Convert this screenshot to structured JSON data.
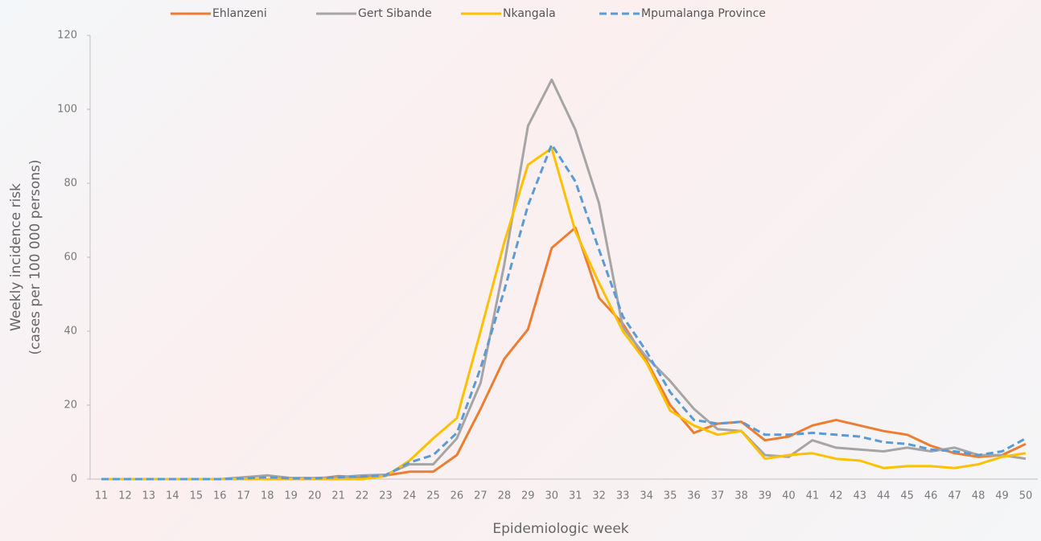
{
  "chart_data": {
    "type": "line",
    "xlabel": "Epidemiologic week",
    "ylabel": [
      "Weekly incidence risk",
      "(cases per 100 000 persons)"
    ],
    "categories": [
      "11",
      "12",
      "13",
      "14",
      "15",
      "16",
      "17",
      "18",
      "19",
      "20",
      "21",
      "22",
      "23",
      "24",
      "25",
      "26",
      "27",
      "28",
      "29",
      "30",
      "31",
      "32",
      "33",
      "34",
      "35",
      "36",
      "37",
      "38",
      "39",
      "40",
      "41",
      "42",
      "43",
      "44",
      "45",
      "46",
      "47",
      "48",
      "49",
      "50"
    ],
    "ylim": [
      0,
      120
    ],
    "yticks": [
      0,
      20,
      40,
      60,
      80,
      100,
      120
    ],
    "series": [
      {
        "name": "Ehlanzeni",
        "color": "#ed7d31",
        "dash": "solid",
        "values": [
          0,
          0,
          0,
          0,
          0,
          0,
          0,
          0,
          0,
          0,
          0.8,
          0.5,
          1,
          2,
          2,
          6.5,
          19,
          32.5,
          40.5,
          62.5,
          68,
          49,
          42,
          32,
          20,
          12.5,
          15,
          15.5,
          10.5,
          11.5,
          14.5,
          16,
          14.5,
          13,
          12,
          9,
          7,
          6,
          6.5,
          9.5
        ]
      },
      {
        "name": "Gert Sibande",
        "color": "#a5a5a5",
        "dash": "solid",
        "values": [
          0,
          0,
          0,
          0,
          0,
          0,
          0.5,
          1,
          0.3,
          0.3,
          0.5,
          1,
          1.2,
          4,
          4,
          11,
          26,
          58,
          95.5,
          108,
          94.5,
          74.5,
          41,
          33,
          26.5,
          19,
          13.5,
          13,
          6.5,
          6,
          10.5,
          8.5,
          8,
          7.5,
          8.5,
          7.5,
          8.5,
          6.5,
          6.5,
          5.5
        ]
      },
      {
        "name": "Nkangala",
        "color": "#ffc000",
        "dash": "solid",
        "values": [
          0,
          0,
          0,
          0,
          0,
          0,
          0,
          0,
          0,
          0,
          0,
          0,
          0.8,
          5,
          11,
          16.5,
          40,
          64,
          85,
          89.5,
          67,
          53,
          40,
          31.5,
          18.5,
          14.5,
          12,
          13,
          5.5,
          6.5,
          7,
          5.5,
          5,
          3,
          3.5,
          3.5,
          3,
          4,
          6,
          7
        ]
      },
      {
        "name": "Mpumalanga Province",
        "color": "#5b9bd5",
        "dash": "dashed",
        "values": [
          0,
          0,
          0,
          0,
          0,
          0,
          0.2,
          0.5,
          0.2,
          0.2,
          0.5,
          0.7,
          1,
          4.5,
          6.5,
          12.5,
          30,
          51,
          74,
          90.5,
          80.5,
          62,
          44,
          34.5,
          23.5,
          16,
          15,
          15.5,
          12,
          12,
          12.5,
          12,
          11.5,
          10,
          9.5,
          8,
          7.5,
          6.5,
          7.5,
          11
        ]
      }
    ]
  }
}
